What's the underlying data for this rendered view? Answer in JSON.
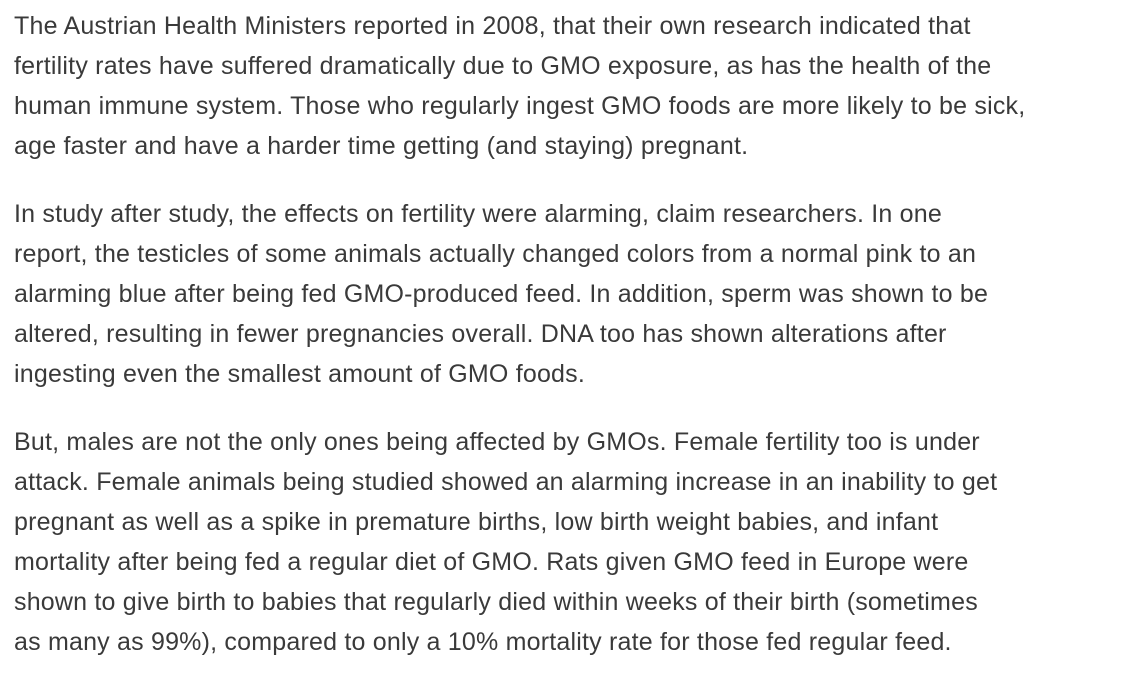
{
  "page": {
    "background_color": "#ffffff",
    "text_color": "#3a3a3a"
  },
  "article": {
    "paragraphs": [
      {
        "text": "The Austrian Health Ministers reported in 2008, that their own research indicated that\nfertility rates have suffered dramatically due to GMO exposure, as has the health of the\nhuman immune system. Those who regularly ingest GMO foods are more likely to be sick,\nage faster and have a harder time getting (and staying) pregnant."
      },
      {
        "text": "In study after study, the effects on fertility were alarming, claim researchers. In one\nreport, the testicles of some animals actually changed colors from a normal pink to an\nalarming blue after being fed GMO-produced feed. In addition, sperm was shown to be\naltered, resulting in fewer pregnancies overall. DNA too has shown alterations after\ningesting even the smallest amount of GMO foods."
      },
      {
        "text": "But, males are not the only ones being affected by GMOs. Female fertility too is under\nattack. Female animals being studied showed an alarming increase in an inability to get\npregnant as well as a spike in premature births, low birth weight babies, and infant\nmortality after being fed a regular diet of GMO. Rats given GMO feed in Europe were\nshown to give birth to babies that regularly died within weeks of their birth (sometimes\nas many as 99%), compared to only a 10% mortality rate for those fed regular feed."
      }
    ]
  }
}
